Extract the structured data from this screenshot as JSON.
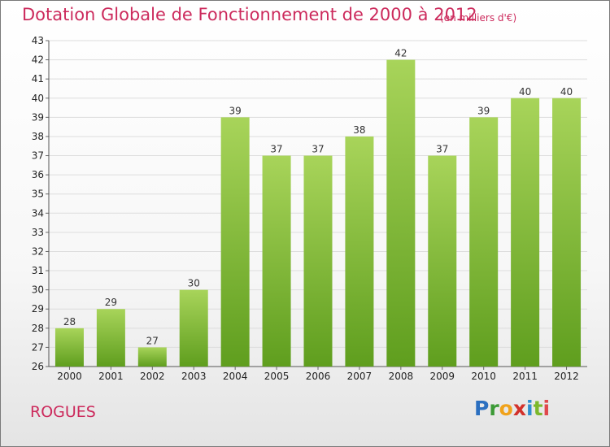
{
  "title": "Dotation Globale de Fonctionnement de 2000 à 2012",
  "subtitle": "(en milliers d'€)",
  "commune": "ROGUES",
  "logo": [
    "P",
    "r",
    "o",
    "x",
    "i",
    "t",
    "i"
  ],
  "colors": {
    "title": "#cc2a5c",
    "bar_top": "#a8d45a",
    "bar_bottom": "#5f9e1e"
  },
  "chart_data": {
    "type": "bar",
    "categories": [
      "2000",
      "2001",
      "2002",
      "2003",
      "2004",
      "2005",
      "2006",
      "2007",
      "2008",
      "2009",
      "2010",
      "2011",
      "2012"
    ],
    "values": [
      28,
      29,
      27,
      30,
      39,
      37,
      37,
      38,
      42,
      37,
      39,
      40,
      40
    ],
    "ylim": [
      26,
      43
    ],
    "yticks": [
      26,
      27,
      28,
      29,
      30,
      31,
      32,
      33,
      34,
      35,
      36,
      37,
      38,
      39,
      40,
      41,
      42,
      43
    ],
    "grid": true
  }
}
